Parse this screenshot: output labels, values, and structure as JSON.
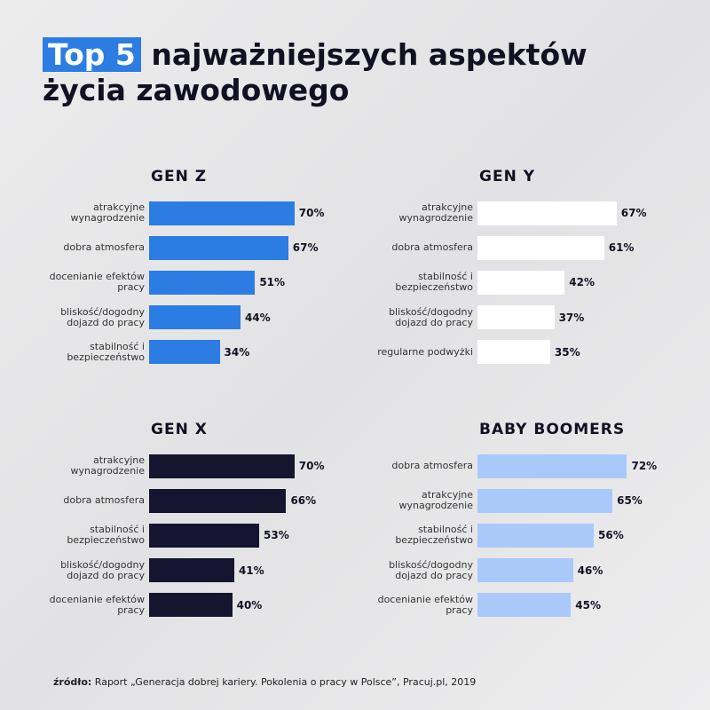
{
  "title_highlight": "Top 5",
  "title_lines": [
    "najważniejszych aspektów",
    "życia zawodowego"
  ],
  "source_label": "źródło:",
  "source": "Raport „Generacja dobrej kariery. Pokolenia o pracy w Polsce”, Pracuj.pl, 2019",
  "chart_data": [
    {
      "type": "bar",
      "title": "GEN Z",
      "color": "#2b7de3",
      "categories": [
        "atrakcyjne wynagrodzenie",
        "dobra atmosfera",
        "docenianie efektów pracy",
        "bliskość/dogodny dojazd do pracy",
        "stabilność i bezpieczeństwo"
      ],
      "values": [
        70,
        67,
        51,
        44,
        34
      ],
      "value_labels": [
        "70%",
        "67%",
        "51%",
        "44%",
        "34%"
      ]
    },
    {
      "type": "bar",
      "title": "GEN Y",
      "color": "#ffffff",
      "categories": [
        "atrakcyjne wynagrodzenie",
        "dobra atmosfera",
        "stabilność i bezpieczeństwo",
        "bliskość/dogodny dojazd do pracy",
        "regularne podwyżki"
      ],
      "values": [
        67,
        61,
        42,
        37,
        35
      ],
      "value_labels": [
        "67%",
        "61%",
        "42%",
        "37%",
        "35%"
      ]
    },
    {
      "type": "bar",
      "title": "GEN X",
      "color": "#15152f",
      "categories": [
        "atrakcyjne wynagrodzenie",
        "dobra atmosfera",
        "stabilność i bezpieczeństwo",
        "bliskość/dogodny dojazd do pracy",
        "docenianie efektów pracy"
      ],
      "values": [
        70,
        66,
        53,
        41,
        40
      ],
      "value_labels": [
        "70%",
        "66%",
        "53%",
        "41%",
        "40%"
      ]
    },
    {
      "type": "bar",
      "title": "BABY BOOMERS",
      "color": "#a9c9fa",
      "categories": [
        "dobra atmosfera",
        "atrakcyjne wynagrodzenie",
        "stabilność i bezpieczeństwo",
        "bliskość/dogodny dojazd do pracy",
        "docenianie efektów pracy"
      ],
      "values": [
        72,
        65,
        56,
        46,
        45
      ],
      "value_labels": [
        "72%",
        "65%",
        "56%",
        "46%",
        "45%"
      ]
    }
  ]
}
